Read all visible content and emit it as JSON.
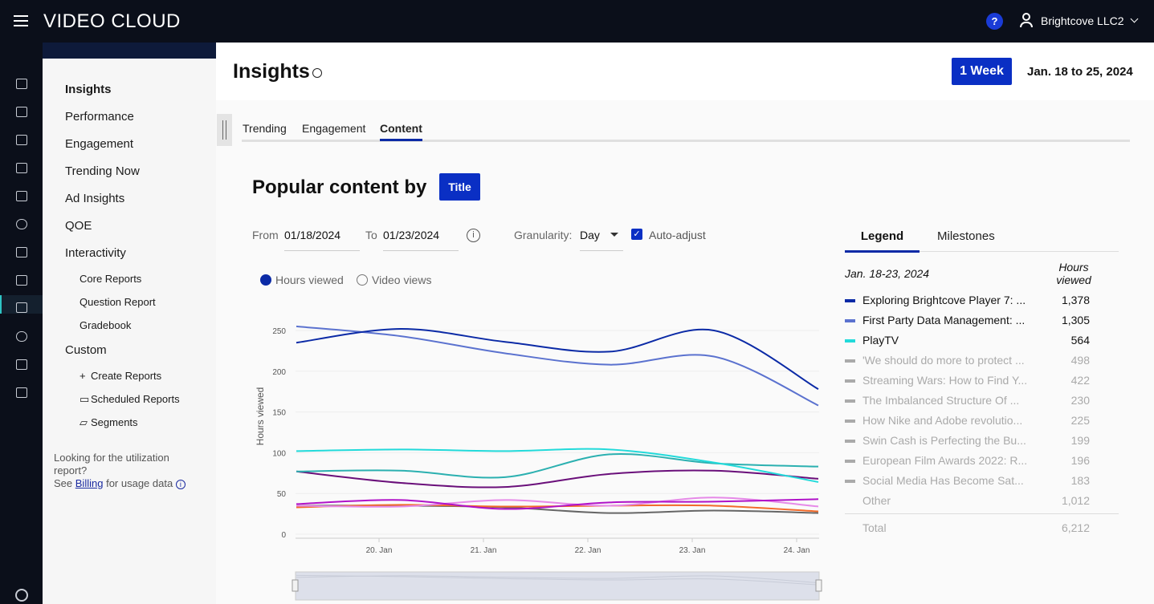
{
  "topbar": {
    "logo": "VIDEO CLOUD",
    "account": "Brightcove LLC2",
    "help": "?"
  },
  "rail_icons": [
    "home-icon",
    "upload-icon",
    "video-icon",
    "media-icon",
    "tv-icon",
    "cloud-icon",
    "share-icon",
    "audience-icon",
    "analytics-icon",
    "play-icon",
    "users-icon",
    "plug-icon"
  ],
  "sidebar": {
    "items": [
      "Insights",
      "Performance",
      "Engagement",
      "Trending Now",
      "Ad Insights",
      "QOE",
      "Interactivity"
    ],
    "interactivity_sub": [
      "Core Reports",
      "Question Report",
      "Gradebook"
    ],
    "custom": "Custom",
    "custom_sub": [
      "Create Reports",
      "Scheduled Reports",
      "Segments"
    ],
    "note_line1": "Looking for the utilization",
    "note_line2": "report?",
    "note_see": "See",
    "note_link": "Billing",
    "note_rest": "for usage data"
  },
  "header": {
    "title": "Insights",
    "range_button": "1 Week",
    "date_range": "Jan. 18 to 25, 2024"
  },
  "tabs": [
    "Trending",
    "Engagement",
    "Content"
  ],
  "active_tab": "Content",
  "section": {
    "title": "Popular content by",
    "by_button": "Title"
  },
  "filters": {
    "from_label": "From",
    "from": "01/18/2024",
    "to_label": "To",
    "to": "01/23/2024",
    "granularity_label": "Granularity:",
    "granularity": "Day",
    "auto_adjust": "Auto-adjust",
    "auto_adjust_checked": true
  },
  "metric_toggle": {
    "options": [
      "Hours viewed",
      "Video views"
    ],
    "selected": "Hours viewed"
  },
  "legend_panel": {
    "tabs": [
      "Legend",
      "Milestones"
    ],
    "active": "Legend",
    "period": "Jan. 18-23, 2024",
    "col_header_1": "Hours",
    "col_header_2": "viewed",
    "rows": [
      {
        "name": "Exploring Brightcove Player 7: ...",
        "value": "1,378",
        "color": "#0b2aa6",
        "active": true
      },
      {
        "name": "First Party Data Management: ...",
        "value": "1,305",
        "color": "#5b72cf",
        "active": true
      },
      {
        "name": "PlayTV",
        "value": "564",
        "color": "#22dada",
        "active": true
      },
      {
        "name": "'We should do more to protect ...",
        "value": "498",
        "color": "#aaaaaa",
        "active": false
      },
      {
        "name": "Streaming Wars: How to Find Y...",
        "value": "422",
        "color": "#aaaaaa",
        "active": false
      },
      {
        "name": "The Imbalanced Structure Of ...",
        "value": "230",
        "color": "#aaaaaa",
        "active": false
      },
      {
        "name": "How Nike and Adobe revolutio...",
        "value": "225",
        "color": "#aaaaaa",
        "active": false
      },
      {
        "name": "Swin Cash is Perfecting the Bu...",
        "value": "199",
        "color": "#aaaaaa",
        "active": false
      },
      {
        "name": "European Film Awards 2022: R...",
        "value": "196",
        "color": "#aaaaaa",
        "active": false
      },
      {
        "name": "Social Media Has Become Sat...",
        "value": "183",
        "color": "#aaaaaa",
        "active": false
      }
    ],
    "other_label": "Other",
    "other_value": "1,012",
    "total_label": "Total",
    "total_value": "6,212"
  },
  "chart_data": {
    "type": "line",
    "ylabel": "Hours viewed",
    "ylim": [
      0,
      270
    ],
    "yticks": [
      "0",
      "50",
      "100",
      "150",
      "200",
      "250"
    ],
    "xticks": [
      "20. Jan",
      "21. Jan",
      "22. Jan",
      "23. Jan",
      "24. Jan"
    ],
    "x": [
      "2024-01-19",
      "2024-01-20",
      "2024-01-21",
      "2024-01-22",
      "2024-01-23",
      "2024-01-24"
    ],
    "grid": true,
    "series": [
      {
        "color": "#0b2aa6",
        "values": [
          235,
          252,
          236,
          224,
          250,
          178
        ]
      },
      {
        "color": "#5b72cf",
        "values": [
          255,
          243,
          222,
          208,
          218,
          158
        ]
      },
      {
        "color": "#22dada",
        "values": [
          102,
          104,
          102,
          104,
          88,
          64
        ]
      },
      {
        "color": "#2bb0b0",
        "values": [
          77,
          78,
          70,
          98,
          87,
          83
        ]
      },
      {
        "color": "#6a0f7a",
        "values": [
          77,
          63,
          58,
          74,
          78,
          68
        ]
      },
      {
        "color": "#b012c8",
        "values": [
          37,
          42,
          31,
          39,
          40,
          43
        ]
      },
      {
        "color": "#e68ae8",
        "values": [
          35,
          34,
          42,
          35,
          45,
          34
        ]
      },
      {
        "color": "#f26a2a",
        "values": [
          33,
          36,
          34,
          35,
          35,
          28
        ]
      },
      {
        "color": "#666666",
        "values": [
          35,
          35,
          33,
          26,
          29,
          26
        ]
      }
    ]
  }
}
